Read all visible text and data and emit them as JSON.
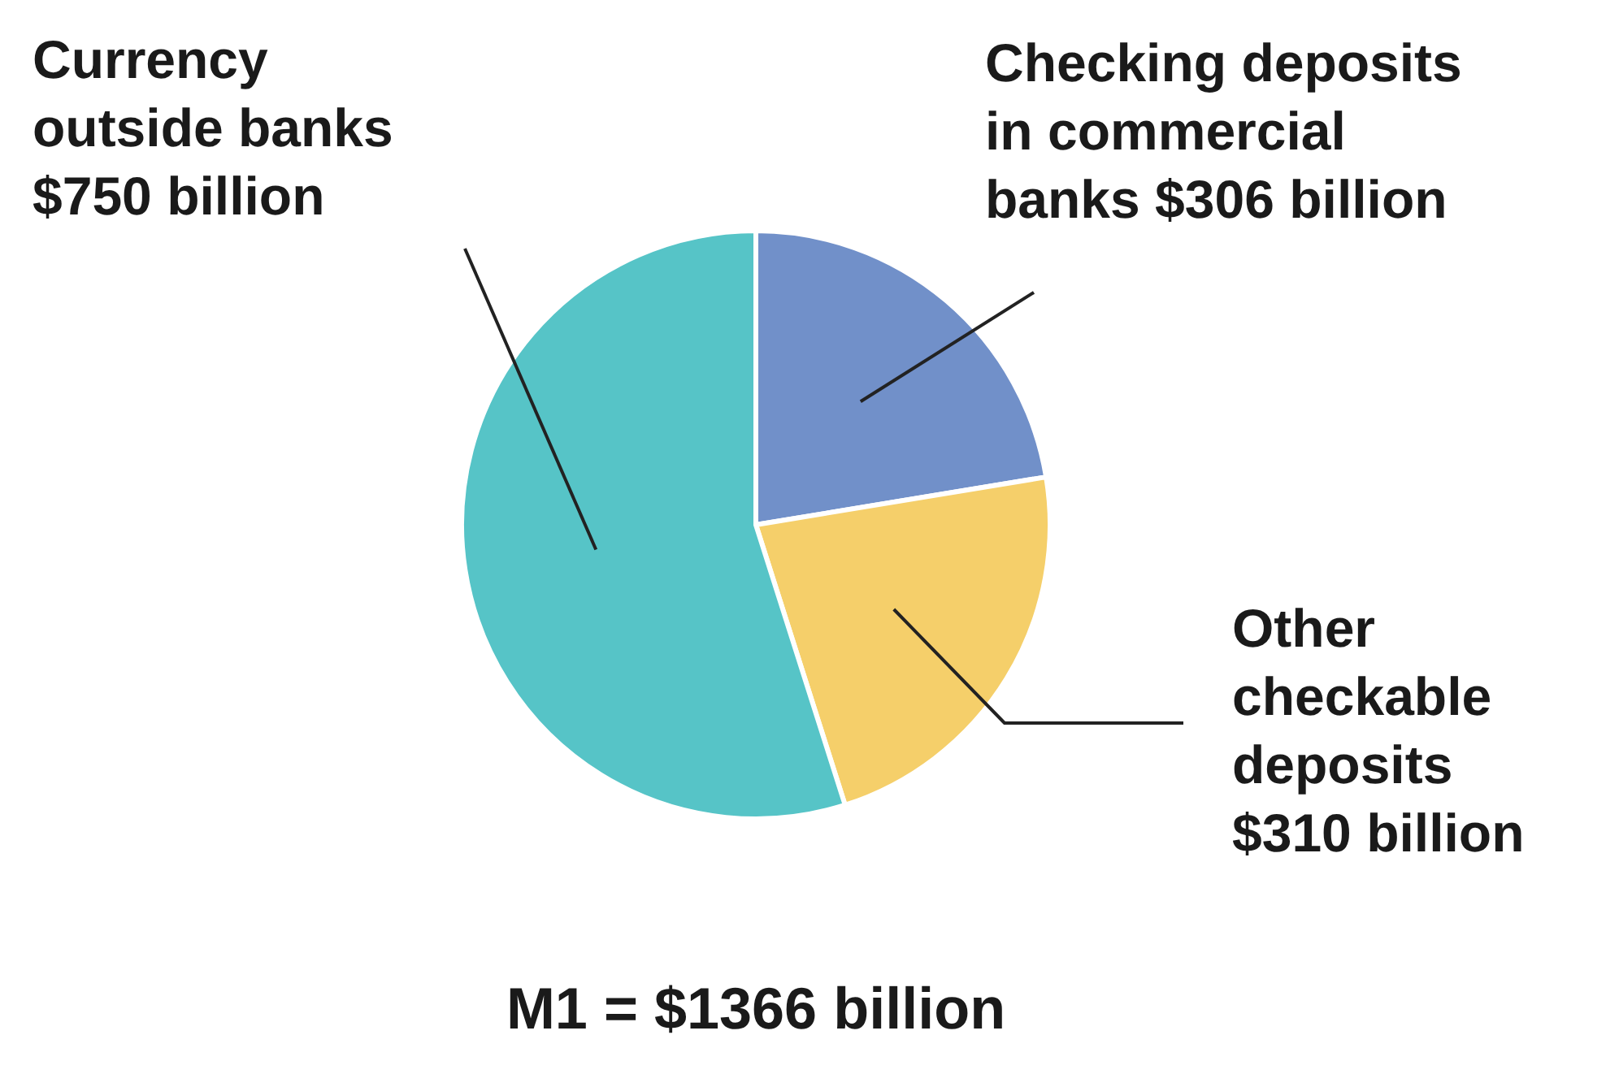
{
  "chart_data": {
    "type": "pie",
    "title": "M1 = $1366 billion",
    "categories": [
      "Checking deposits in commercial banks",
      "Other checkable deposits",
      "Currency outside banks"
    ],
    "values": [
      306,
      310,
      750
    ],
    "value_labels": [
      "$306 billion",
      "$310 billion",
      "$750 billion"
    ],
    "colors": [
      "#7190c9",
      "#f5cf6a",
      "#56c4c7"
    ]
  }
}
